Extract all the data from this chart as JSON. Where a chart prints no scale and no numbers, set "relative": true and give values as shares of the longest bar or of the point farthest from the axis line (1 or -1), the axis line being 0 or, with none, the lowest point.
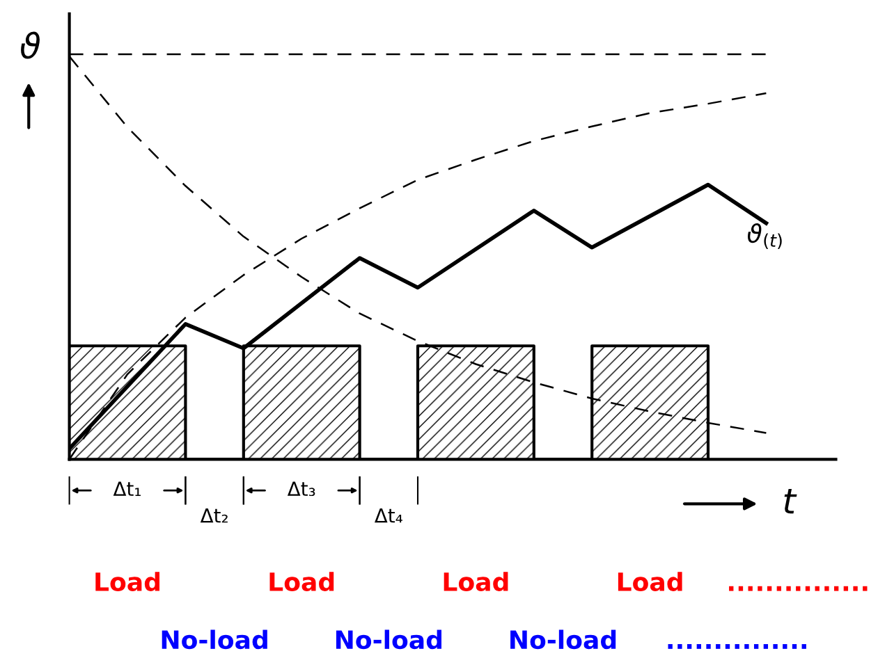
{
  "chart_data": {
    "type": "line",
    "relative": true,
    "xlabel": "t",
    "ylabel": "ϑ",
    "categories": [
      null,
      null,
      null,
      null,
      null,
      null,
      null,
      null,
      null,
      null,
      null,
      null,
      null
    ],
    "series": [
      {
        "type": "step",
        "color": "#000000",
        "values": [
          0.28,
          null,
          0,
          0.28,
          null,
          0,
          0.28,
          null,
          0,
          0.28,
          null,
          0,
          null
        ]
      },
      {
        "type": "line",
        "line_style": "dashed",
        "color": "#000000",
        "values": [
          0,
          0.21,
          0.35,
          0.455,
          0.545,
          0.62,
          0.69,
          0.74,
          0.786,
          0.822,
          0.855,
          0.878,
          0.904
        ]
      },
      {
        "type": "line",
        "line_style": "dashed",
        "color": "#000000",
        "values": [
          0.995,
          0.82,
          0.675,
          0.55,
          0.45,
          0.36,
          0.292,
          0.235,
          0.19,
          0.15,
          0.118,
          0.09,
          0.065
        ]
      },
      {
        "type": "line",
        "line_style": "dashed",
        "color": "#000000",
        "values": [
          1,
          1,
          1,
          1,
          1,
          1,
          1,
          1,
          1,
          1,
          1,
          1,
          1
        ]
      },
      {
        "name": "ϑ$_{(t)}$",
        "line_style": "solid",
        "color": "#000000",
        "values": [
          0.026,
          null,
          0.334,
          0.274,
          null,
          0.497,
          0.424,
          null,
          0.614,
          0.523,
          null,
          0.678,
          0.583
        ]
      }
    ],
    "annotations": [
      "Δt₁",
      "Δt₂",
      "Δt₃",
      "Δt₄",
      "Load",
      "Load",
      "Load",
      "Load",
      "...............",
      "No-load",
      "No-load",
      "No-load",
      "..............."
    ]
  }
}
